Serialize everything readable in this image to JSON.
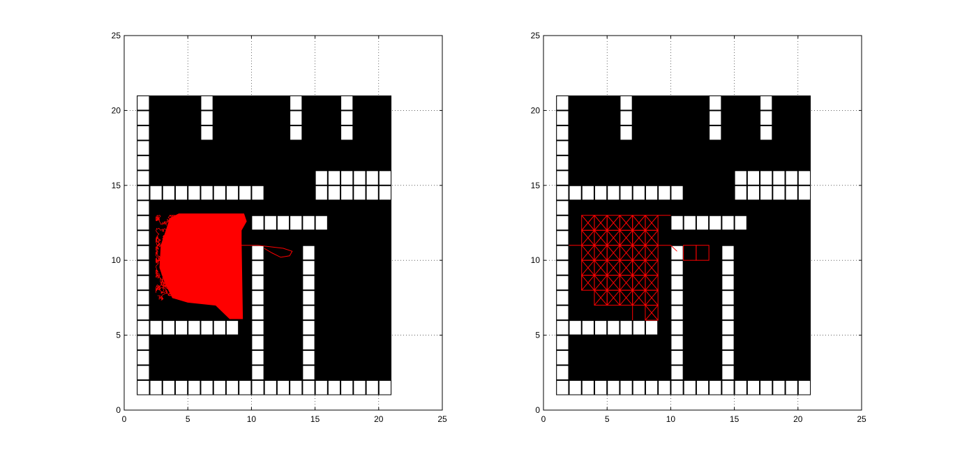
{
  "chart_data": [
    {
      "type": "grid-map",
      "panel": "left",
      "xlim": [
        0,
        25
      ],
      "ylim": [
        0,
        25
      ],
      "xticks": [
        0,
        5,
        10,
        15,
        20,
        25
      ],
      "yticks": [
        0,
        5,
        10,
        15,
        20,
        25
      ],
      "grid": "dotted",
      "map_extent": {
        "x": [
          1,
          21
        ],
        "y": [
          1,
          21
        ]
      },
      "free_cells": [
        [
          1,
          1
        ],
        [
          1,
          2
        ],
        [
          1,
          3
        ],
        [
          1,
          4
        ],
        [
          1,
          5
        ],
        [
          1,
          6
        ],
        [
          1,
          7
        ],
        [
          1,
          8
        ],
        [
          1,
          9
        ],
        [
          1,
          10
        ],
        [
          1,
          11
        ],
        [
          1,
          12
        ],
        [
          1,
          13
        ],
        [
          1,
          14
        ],
        [
          1,
          15
        ],
        [
          1,
          16
        ],
        [
          1,
          17
        ],
        [
          1,
          18
        ],
        [
          1,
          19
        ],
        [
          1,
          20
        ],
        [
          2,
          1
        ],
        [
          3,
          1
        ],
        [
          4,
          1
        ],
        [
          5,
          1
        ],
        [
          6,
          1
        ],
        [
          7,
          1
        ],
        [
          8,
          1
        ],
        [
          9,
          1
        ],
        [
          10,
          1
        ],
        [
          11,
          1
        ],
        [
          12,
          1
        ],
        [
          13,
          1
        ],
        [
          14,
          1
        ],
        [
          15,
          1
        ],
        [
          16,
          1
        ],
        [
          17,
          1
        ],
        [
          18,
          1
        ],
        [
          19,
          1
        ],
        [
          20,
          1
        ],
        [
          2,
          14
        ],
        [
          3,
          14
        ],
        [
          4,
          14
        ],
        [
          5,
          14
        ],
        [
          6,
          14
        ],
        [
          7,
          14
        ],
        [
          8,
          14
        ],
        [
          9,
          14
        ],
        [
          10,
          14
        ],
        [
          15,
          14
        ],
        [
          16,
          14
        ],
        [
          17,
          14
        ],
        [
          18,
          14
        ],
        [
          19,
          14
        ],
        [
          20,
          14
        ],
        [
          15,
          15
        ],
        [
          16,
          15
        ],
        [
          17,
          15
        ],
        [
          18,
          15
        ],
        [
          19,
          15
        ],
        [
          20,
          15
        ],
        [
          6,
          18
        ],
        [
          6,
          19
        ],
        [
          6,
          20
        ],
        [
          13,
          18
        ],
        [
          13,
          19
        ],
        [
          13,
          20
        ],
        [
          17,
          18
        ],
        [
          17,
          19
        ],
        [
          17,
          20
        ],
        [
          10,
          12
        ],
        [
          11,
          12
        ],
        [
          12,
          12
        ],
        [
          13,
          12
        ],
        [
          14,
          12
        ],
        [
          15,
          12
        ],
        [
          10,
          2
        ],
        [
          10,
          3
        ],
        [
          10,
          4
        ],
        [
          10,
          5
        ],
        [
          10,
          6
        ],
        [
          10,
          7
        ],
        [
          10,
          8
        ],
        [
          10,
          9
        ],
        [
          10,
          10
        ],
        [
          14,
          2
        ],
        [
          14,
          3
        ],
        [
          14,
          4
        ],
        [
          14,
          5
        ],
        [
          14,
          6
        ],
        [
          14,
          7
        ],
        [
          14,
          8
        ],
        [
          14,
          9
        ],
        [
          14,
          10
        ],
        [
          2,
          5
        ],
        [
          3,
          5
        ],
        [
          4,
          5
        ],
        [
          5,
          5
        ],
        [
          6,
          5
        ],
        [
          7,
          5
        ],
        [
          8,
          5
        ]
      ],
      "trajectory_style": "dense-random",
      "explored_region": {
        "x": [
          2.5,
          9.5
        ],
        "y": [
          6,
          13
        ]
      },
      "branch_path": [
        [
          9.2,
          11
        ],
        [
          10.5,
          11
        ],
        [
          11.5,
          10.9
        ],
        [
          12.5,
          10.8
        ],
        [
          13.2,
          10.6
        ],
        [
          13,
          10.3
        ],
        [
          12.3,
          10.2
        ],
        [
          11.6,
          10.5
        ],
        [
          11,
          10.8
        ]
      ],
      "color": "#ff0000"
    },
    {
      "type": "grid-map",
      "panel": "right",
      "xlim": [
        0,
        25
      ],
      "ylim": [
        0,
        25
      ],
      "xticks": [
        0,
        5,
        10,
        15,
        20,
        25
      ],
      "yticks": [
        0,
        5,
        10,
        15,
        20,
        25
      ],
      "grid": "dotted",
      "map_extent": {
        "x": [
          1,
          21
        ],
        "y": [
          1,
          21
        ]
      },
      "free_cells": [
        [
          1,
          1
        ],
        [
          1,
          2
        ],
        [
          1,
          3
        ],
        [
          1,
          4
        ],
        [
          1,
          5
        ],
        [
          1,
          6
        ],
        [
          1,
          7
        ],
        [
          1,
          8
        ],
        [
          1,
          9
        ],
        [
          1,
          10
        ],
        [
          1,
          11
        ],
        [
          1,
          12
        ],
        [
          1,
          13
        ],
        [
          1,
          14
        ],
        [
          1,
          15
        ],
        [
          1,
          16
        ],
        [
          1,
          17
        ],
        [
          1,
          18
        ],
        [
          1,
          19
        ],
        [
          1,
          20
        ],
        [
          2,
          1
        ],
        [
          3,
          1
        ],
        [
          4,
          1
        ],
        [
          5,
          1
        ],
        [
          6,
          1
        ],
        [
          7,
          1
        ],
        [
          8,
          1
        ],
        [
          9,
          1
        ],
        [
          10,
          1
        ],
        [
          11,
          1
        ],
        [
          12,
          1
        ],
        [
          13,
          1
        ],
        [
          14,
          1
        ],
        [
          15,
          1
        ],
        [
          16,
          1
        ],
        [
          17,
          1
        ],
        [
          18,
          1
        ],
        [
          19,
          1
        ],
        [
          20,
          1
        ],
        [
          2,
          14
        ],
        [
          3,
          14
        ],
        [
          4,
          14
        ],
        [
          5,
          14
        ],
        [
          6,
          14
        ],
        [
          7,
          14
        ],
        [
          8,
          14
        ],
        [
          9,
          14
        ],
        [
          10,
          14
        ],
        [
          15,
          14
        ],
        [
          16,
          14
        ],
        [
          17,
          14
        ],
        [
          18,
          14
        ],
        [
          19,
          14
        ],
        [
          20,
          14
        ],
        [
          15,
          15
        ],
        [
          16,
          15
        ],
        [
          17,
          15
        ],
        [
          18,
          15
        ],
        [
          19,
          15
        ],
        [
          20,
          15
        ],
        [
          6,
          18
        ],
        [
          6,
          19
        ],
        [
          6,
          20
        ],
        [
          13,
          18
        ],
        [
          13,
          19
        ],
        [
          13,
          20
        ],
        [
          17,
          18
        ],
        [
          17,
          19
        ],
        [
          17,
          20
        ],
        [
          10,
          12
        ],
        [
          11,
          12
        ],
        [
          12,
          12
        ],
        [
          13,
          12
        ],
        [
          14,
          12
        ],
        [
          15,
          12
        ],
        [
          10,
          2
        ],
        [
          10,
          3
        ],
        [
          10,
          4
        ],
        [
          10,
          5
        ],
        [
          10,
          6
        ],
        [
          10,
          7
        ],
        [
          10,
          8
        ],
        [
          10,
          9
        ],
        [
          10,
          10
        ],
        [
          14,
          2
        ],
        [
          14,
          3
        ],
        [
          14,
          4
        ],
        [
          14,
          5
        ],
        [
          14,
          6
        ],
        [
          14,
          7
        ],
        [
          14,
          8
        ],
        [
          14,
          9
        ],
        [
          14,
          10
        ],
        [
          2,
          5
        ],
        [
          3,
          5
        ],
        [
          4,
          5
        ],
        [
          5,
          5
        ],
        [
          6,
          5
        ],
        [
          7,
          5
        ],
        [
          8,
          5
        ]
      ],
      "trajectory_style": "cell-lattice",
      "visited_cells": [
        [
          3,
          12
        ],
        [
          4,
          12
        ],
        [
          5,
          12
        ],
        [
          6,
          12
        ],
        [
          7,
          12
        ],
        [
          8,
          12
        ],
        [
          3,
          11
        ],
        [
          4,
          11
        ],
        [
          5,
          11
        ],
        [
          6,
          11
        ],
        [
          7,
          11
        ],
        [
          8,
          11
        ],
        [
          3,
          10
        ],
        [
          4,
          10
        ],
        [
          5,
          10
        ],
        [
          6,
          10
        ],
        [
          7,
          10
        ],
        [
          8,
          10
        ],
        [
          3,
          9
        ],
        [
          4,
          9
        ],
        [
          5,
          9
        ],
        [
          6,
          9
        ],
        [
          7,
          9
        ],
        [
          8,
          9
        ],
        [
          3,
          8
        ],
        [
          4,
          8
        ],
        [
          5,
          8
        ],
        [
          6,
          8
        ],
        [
          7,
          8
        ],
        [
          8,
          8
        ],
        [
          4,
          7
        ],
        [
          5,
          7
        ],
        [
          6,
          7
        ],
        [
          7,
          7
        ],
        [
          8,
          7
        ],
        [
          8,
          6
        ]
      ],
      "side_cells": [
        [
          11,
          10
        ],
        [
          12,
          10
        ]
      ],
      "extra_segments": [
        [
          [
            2,
            11
          ],
          [
            3,
            11
          ]
        ],
        [
          [
            3,
            8
          ],
          [
            3,
            9
          ]
        ],
        [
          [
            9,
            13
          ],
          [
            10,
            13
          ]
        ],
        [
          [
            9,
            11
          ],
          [
            10,
            11
          ]
        ],
        [
          [
            10,
            11
          ],
          [
            10.5,
            10.6
          ]
        ],
        [
          [
            7,
            6
          ],
          [
            7,
            7
          ]
        ]
      ],
      "color": "#ff0000"
    }
  ]
}
